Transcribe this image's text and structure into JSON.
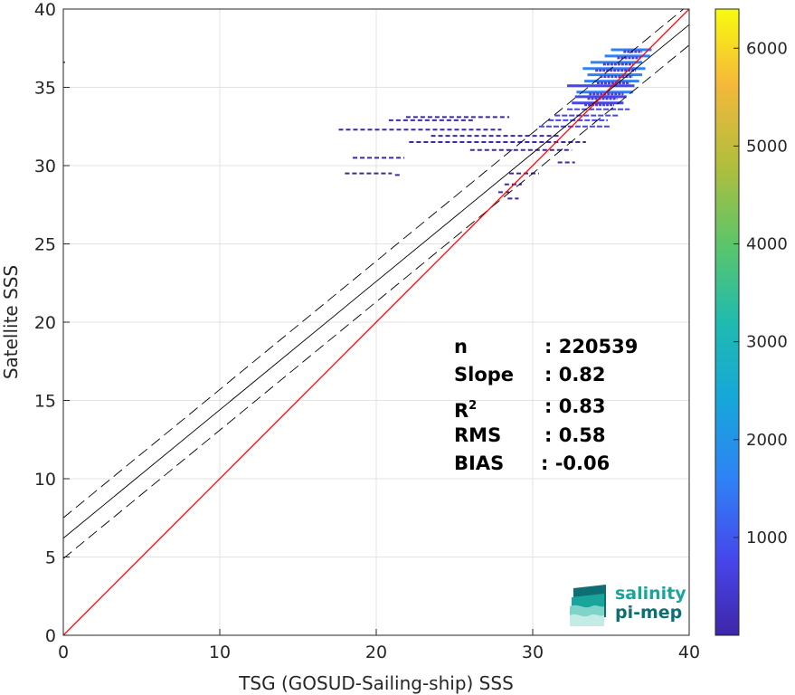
{
  "chart_data": {
    "type": "scatter",
    "xlabel": "TSG (GOSUD-Sailing-ship) SSS",
    "ylabel": "Satellite SSS",
    "xlim": [
      0,
      40
    ],
    "ylim": [
      0,
      40
    ],
    "x_ticks": [
      "0",
      "10",
      "20",
      "30",
      "40"
    ],
    "y_ticks": [
      "0",
      "5",
      "10",
      "15",
      "20",
      "25",
      "30",
      "35",
      "40"
    ],
    "grid": true,
    "lines": {
      "identity": {
        "slope": 1.0,
        "intercept": 0.0,
        "color": "#ff0000"
      },
      "fit": {
        "slope": 0.82,
        "intercept": 6.2,
        "color": "#000000"
      },
      "fit_upper": {
        "slope": 0.82,
        "intercept": 7.5,
        "style": "dashed"
      },
      "fit_lower": {
        "slope": 0.82,
        "intercept": 4.9,
        "style": "dashed"
      }
    },
    "density_segments": [
      {
        "y": 37.4,
        "x1": 35.0,
        "x2": 37.6,
        "d": 900
      },
      {
        "y": 37.0,
        "x1": 34.6,
        "x2": 37.5,
        "d": 1100
      },
      {
        "y": 36.6,
        "x1": 33.7,
        "x2": 37.0,
        "d": 900
      },
      {
        "y": 36.2,
        "x1": 33.2,
        "x2": 37.2,
        "d": 800
      },
      {
        "y": 35.8,
        "x1": 33.5,
        "x2": 37.0,
        "d": 1000
      },
      {
        "y": 35.4,
        "x1": 33.3,
        "x2": 36.8,
        "d": 900
      },
      {
        "y": 35.1,
        "x1": 32.2,
        "x2": 36.5,
        "d": 600
      },
      {
        "y": 34.7,
        "x1": 32.8,
        "x2": 36.4,
        "d": 800
      },
      {
        "y": 34.4,
        "x1": 32.7,
        "x2": 36.0,
        "d": 700
      },
      {
        "y": 34.0,
        "x1": 32.5,
        "x2": 35.8,
        "d": 700
      },
      {
        "y": 33.6,
        "x1": 32.2,
        "x2": 36.2,
        "d": 500
      },
      {
        "y": 33.2,
        "x1": 31.4,
        "x2": 35.5,
        "d": 400
      },
      {
        "y": 32.9,
        "x1": 31.0,
        "x2": 34.8,
        "d": 300
      },
      {
        "y": 32.5,
        "x1": 30.4,
        "x2": 35.0,
        "d": 300
      },
      {
        "y": 33.1,
        "x1": 21.9,
        "x2": 28.5,
        "d": 150
      },
      {
        "y": 32.9,
        "x1": 20.8,
        "x2": 26.3,
        "d": 150
      },
      {
        "y": 32.3,
        "x1": 17.6,
        "x2": 28.0,
        "d": 200
      },
      {
        "y": 31.9,
        "x1": 23.5,
        "x2": 31.7,
        "d": 150
      },
      {
        "y": 31.5,
        "x1": 22.1,
        "x2": 33.4,
        "d": 150
      },
      {
        "y": 31.0,
        "x1": 26.0,
        "x2": 32.5,
        "d": 100
      },
      {
        "y": 30.5,
        "x1": 18.5,
        "x2": 21.8,
        "d": 150
      },
      {
        "y": 30.2,
        "x1": 31.6,
        "x2": 32.7,
        "d": 150
      },
      {
        "y": 29.5,
        "x1": 18.0,
        "x2": 21.0,
        "d": 150
      },
      {
        "y": 29.4,
        "x1": 21.2,
        "x2": 21.6,
        "d": 100
      },
      {
        "y": 29.5,
        "x1": 28.5,
        "x2": 30.4,
        "d": 150
      },
      {
        "y": 28.8,
        "x1": 28.2,
        "x2": 29.3,
        "d": 150
      },
      {
        "y": 28.3,
        "x1": 27.8,
        "x2": 28.5,
        "d": 150
      },
      {
        "y": 27.9,
        "x1": 28.4,
        "x2": 29.1,
        "d": 150
      },
      {
        "y": 36.6,
        "x1": 0.0,
        "x2": 0.1,
        "d": 50
      }
    ],
    "colorbar": {
      "min": 0,
      "max": 6400,
      "ticks": [
        "1000",
        "2000",
        "3000",
        "4000",
        "5000",
        "6000"
      ],
      "colormap": "parula"
    }
  },
  "stats": {
    "n_label": "n",
    "n_value": ": 220539",
    "slope_label": "Slope",
    "slope_value": ": 0.82",
    "r2_label": "R",
    "r2_sup": "2",
    "r2_value": ": 0.83",
    "rms_label": "RMS",
    "rms_value": ": 0.58",
    "bias_label": "BIAS",
    "bias_value": ": -0.06"
  },
  "logo": {
    "line1": "salinity",
    "line2": "pi-mep",
    "color1": "#1aa59a",
    "color2": "#0d6f74"
  }
}
